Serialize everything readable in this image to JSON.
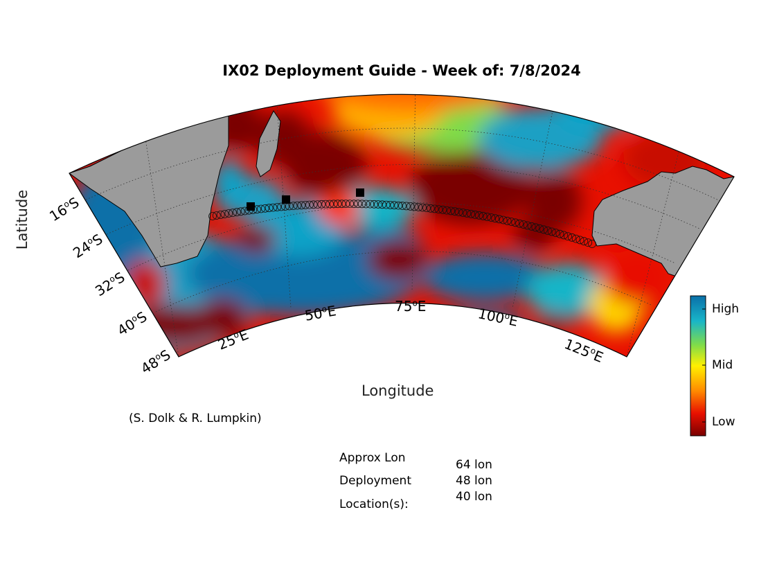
{
  "title": "IX02 Deployment Guide - Week of: 7/8/2024",
  "axes": {
    "xlabel": "Longitude",
    "ylabel": "Latitude"
  },
  "lat_ticks": [
    "16",
    "24",
    "32",
    "40",
    "48"
  ],
  "lat_suffix": "S",
  "lon_ticks": [
    "25",
    "50",
    "75",
    "100",
    "125"
  ],
  "lon_suffix": "E",
  "degree_mark": "o",
  "colorbar": {
    "high": "High",
    "mid": "Mid",
    "low": "Low"
  },
  "credit": "(S. Dolk & R. Lumpkin)",
  "deployment": {
    "label_lines": [
      "Approx Lon",
      "Deployment",
      "Location(s):"
    ],
    "values": [
      "64 lon",
      "48 lon",
      "40 lon"
    ]
  },
  "colors": {
    "land": "#9b9b9b",
    "high": "#0a6fa8",
    "mid": "#fff000",
    "low": "#7a0000"
  }
}
